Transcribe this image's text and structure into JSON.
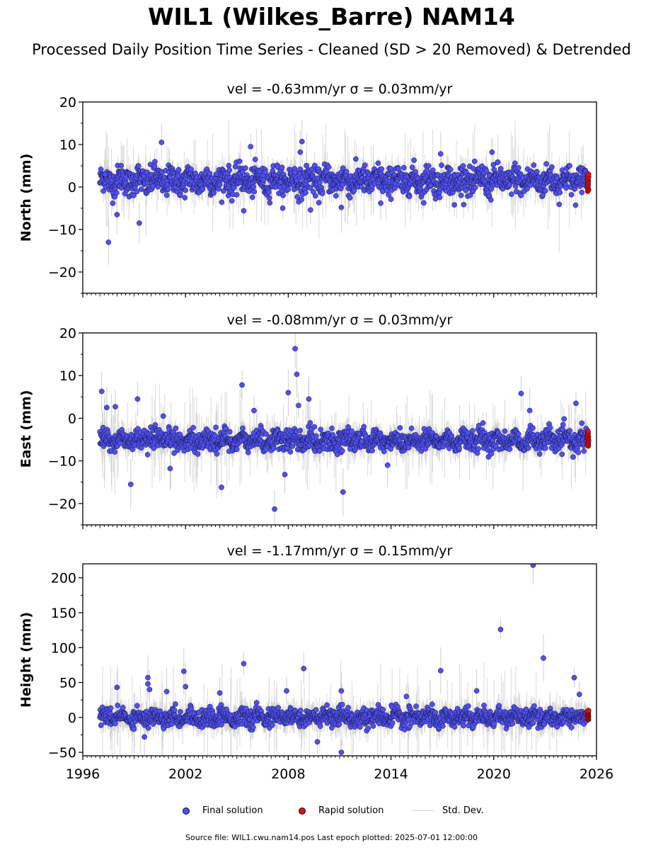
{
  "header": {
    "title": "WIL1 (Wilkes_Barre) NAM14",
    "subtitle": "Processed Daily Position Time Series - Cleaned (SD > 20 Removed) & Detrended"
  },
  "legend": {
    "final": "Final solution",
    "rapid": "Rapid solution",
    "std": "Std. Dev."
  },
  "footer": {
    "source": "Source file: WIL1.cwu.nam14.pos  Last epoch plotted: 2025-07-01 12:00:00"
  },
  "colors": {
    "final": "#5050f0",
    "rapid": "#e01010",
    "std": "#bbbbbb"
  },
  "chart_data": [
    {
      "type": "scatter",
      "title": "vel = -0.63mm/yr   σ = 0.03mm/yr",
      "ylabel": "North (mm)",
      "xlim": [
        1996,
        2026
      ],
      "ylim": [
        -25,
        20
      ],
      "yticks": [
        -20,
        -10,
        0,
        10,
        20
      ],
      "xticks": [
        1996,
        2002,
        2008,
        2014,
        2020,
        2026
      ],
      "show_xtick_labels": false,
      "series": [
        {
          "name": "Final solution",
          "base": 1.5,
          "spread": 2.2,
          "x_range": [
            1997.0,
            2025.45
          ],
          "outliers": [
            [
              1997.5,
              -13
            ],
            [
              1997.3,
              3
            ],
            [
              1998.0,
              -6.5
            ],
            [
              1999.3,
              -8.5
            ],
            [
              2000.6,
              10.5
            ],
            [
              2005.8,
              9.5
            ],
            [
              2008.8,
              10.7
            ],
            [
              2008.7,
              8.2
            ],
            [
              2016.9,
              7.8
            ],
            [
              2019.9,
              8.2
            ],
            [
              2005.4,
              -5.6
            ],
            [
              2009.3,
              -5.4
            ],
            [
              2011.1,
              -4.8
            ],
            [
              2013.4,
              -3.8
            ],
            [
              2017.7,
              -4.2
            ]
          ]
        },
        {
          "name": "Rapid solution",
          "x": 2025.5,
          "y_range": [
            -1,
            3
          ]
        }
      ]
    },
    {
      "type": "scatter",
      "title": "vel = -0.08mm/yr   σ = 0.03mm/yr",
      "ylabel": "East (mm)",
      "xlim": [
        1996,
        2026
      ],
      "ylim": [
        -25,
        20
      ],
      "yticks": [
        -20,
        -10,
        0,
        10,
        20
      ],
      "xticks": [
        1996,
        2002,
        2008,
        2014,
        2020,
        2026
      ],
      "show_xtick_labels": false,
      "series": [
        {
          "name": "Final solution",
          "base": -5.2,
          "spread": 1.6,
          "x_range": [
            1997.0,
            2025.45
          ],
          "outliers": [
            [
              1997.1,
              6.3
            ],
            [
              1997.4,
              2.5
            ],
            [
              1997.9,
              2.7
            ],
            [
              1999.2,
              4.5
            ],
            [
              1998.8,
              -15.5
            ],
            [
              2000.7,
              0.5
            ],
            [
              2005.3,
              7.8
            ],
            [
              2006.0,
              1.8
            ],
            [
              2008.4,
              16.3
            ],
            [
              2008.5,
              10.3
            ],
            [
              2008.0,
              6.0
            ],
            [
              2008.6,
              3.0
            ],
            [
              2007.8,
              -13.2
            ],
            [
              2007.2,
              -21.3
            ],
            [
              2004.1,
              -16.2
            ],
            [
              2011.2,
              -17.3
            ],
            [
              2009.2,
              4.5
            ],
            [
              2021.6,
              5.8
            ],
            [
              2022.1,
              1.8
            ],
            [
              2024.8,
              3.5
            ],
            [
              2001.1,
              -11.8
            ],
            [
              2013.8,
              -11.0
            ]
          ]
        },
        {
          "name": "Rapid solution",
          "x": 2025.5,
          "y_range": [
            -6.5,
            -3
          ]
        }
      ]
    },
    {
      "type": "scatter",
      "title": "vel = -1.17mm/yr   σ = 0.15mm/yr",
      "ylabel": "Height (mm)",
      "xlim": [
        1996,
        2026
      ],
      "ylim": [
        -55,
        220
      ],
      "yticks": [
        -50,
        0,
        50,
        100,
        150,
        200
      ],
      "xticks": [
        1996,
        2002,
        2008,
        2014,
        2020,
        2026
      ],
      "xtick_labels": [
        "1996",
        "2002",
        "2008",
        "2014",
        "2020",
        "2026"
      ],
      "show_xtick_labels": true,
      "series": [
        {
          "name": "Final solution",
          "base": 0,
          "spread": 8,
          "x_range": [
            1997.0,
            2025.45
          ],
          "outliers": [
            [
              1998.0,
              43
            ],
            [
              1999.6,
              -28
            ],
            [
              1999.8,
              57
            ],
            [
              1999.8,
              48
            ],
            [
              1999.9,
              40
            ],
            [
              2000.9,
              37
            ],
            [
              2001.9,
              66
            ],
            [
              2002.0,
              44
            ],
            [
              2004.0,
              35
            ],
            [
              2005.4,
              77
            ],
            [
              2008.9,
              70
            ],
            [
              2009.7,
              -35
            ],
            [
              2011.1,
              -50
            ],
            [
              2011.1,
              38
            ],
            [
              2016.9,
              67
            ],
            [
              2019.0,
              38
            ],
            [
              2020.4,
              126
            ],
            [
              2022.3,
              218
            ],
            [
              2022.9,
              85
            ],
            [
              2024.7,
              57
            ],
            [
              2025.0,
              33
            ],
            [
              2007.9,
              38
            ],
            [
              2014.9,
              30
            ]
          ]
        },
        {
          "name": "Rapid solution",
          "x": 2025.5,
          "y_range": [
            -3,
            10
          ]
        }
      ]
    }
  ]
}
